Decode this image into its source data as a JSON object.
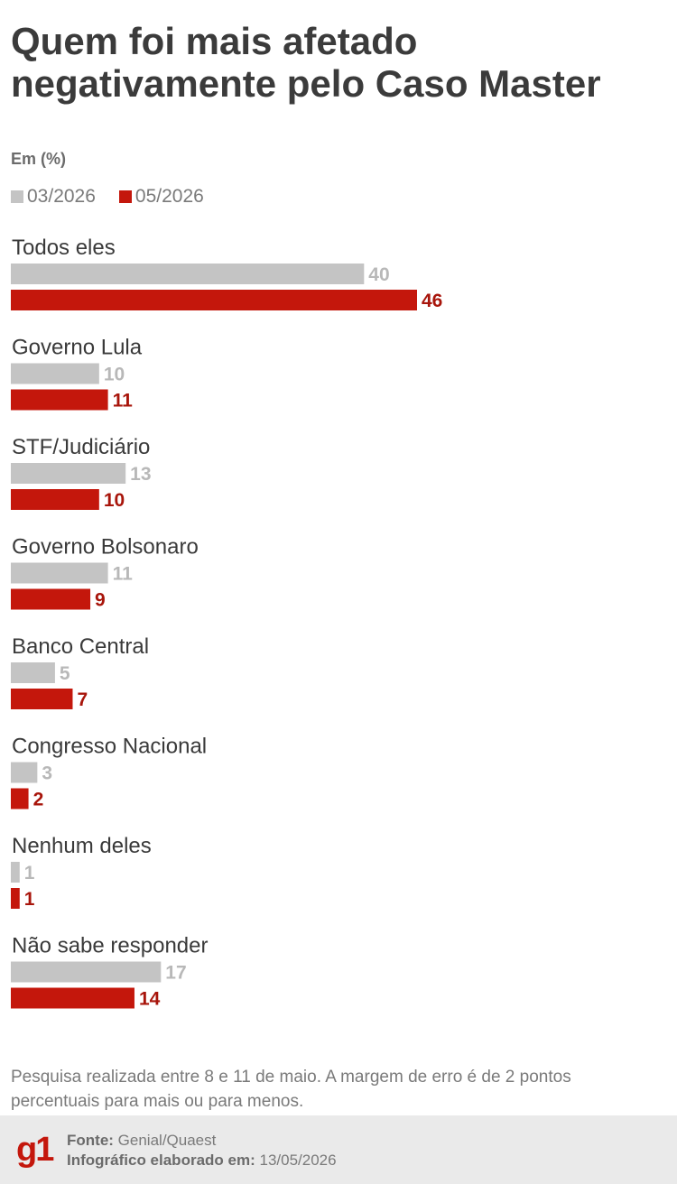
{
  "header": {
    "title": "Quem foi mais afetado negativamente pelo Caso Master",
    "subtitle": "Em (%)"
  },
  "legend": [
    {
      "label": "03/2026",
      "color": "#c4c4c4"
    },
    {
      "label": "05/2026",
      "color": "#c4170c"
    }
  ],
  "chart_data": {
    "type": "bar",
    "orientation": "horizontal",
    "title": "Quem foi mais afetado negativamente pelo Caso Master",
    "subtitle": "Em (%)",
    "categories": [
      "Todos eles",
      "Governo Lula",
      "STF/Judiciário",
      "Governo Bolsonaro",
      "Banco Central",
      "Congresso Nacional",
      "Nenhum deles",
      "Não sabe responder"
    ],
    "series": [
      {
        "name": "03/2026",
        "color": "#c4c4c4",
        "label_color": "#b8b8b8",
        "values": [
          40,
          10,
          13,
          11,
          5,
          3,
          1,
          17
        ]
      },
      {
        "name": "05/2026",
        "color": "#c4170c",
        "label_color": "#a8150b",
        "values": [
          46,
          11,
          10,
          9,
          7,
          2,
          1,
          14
        ]
      }
    ],
    "xlim": [
      0,
      46
    ],
    "grid": false,
    "legend_position": "top-left"
  },
  "footnote": "Pesquisa realizada entre 8 e 11 de maio. A margem de erro é de 2 pontos percentuais para mais ou para menos.",
  "footer": {
    "logo": "g1",
    "source_label": "Fonte:",
    "source_value": "Genial/Quaest",
    "date_label": "Infográfico elaborado em:",
    "date_value": "13/05/2026"
  }
}
